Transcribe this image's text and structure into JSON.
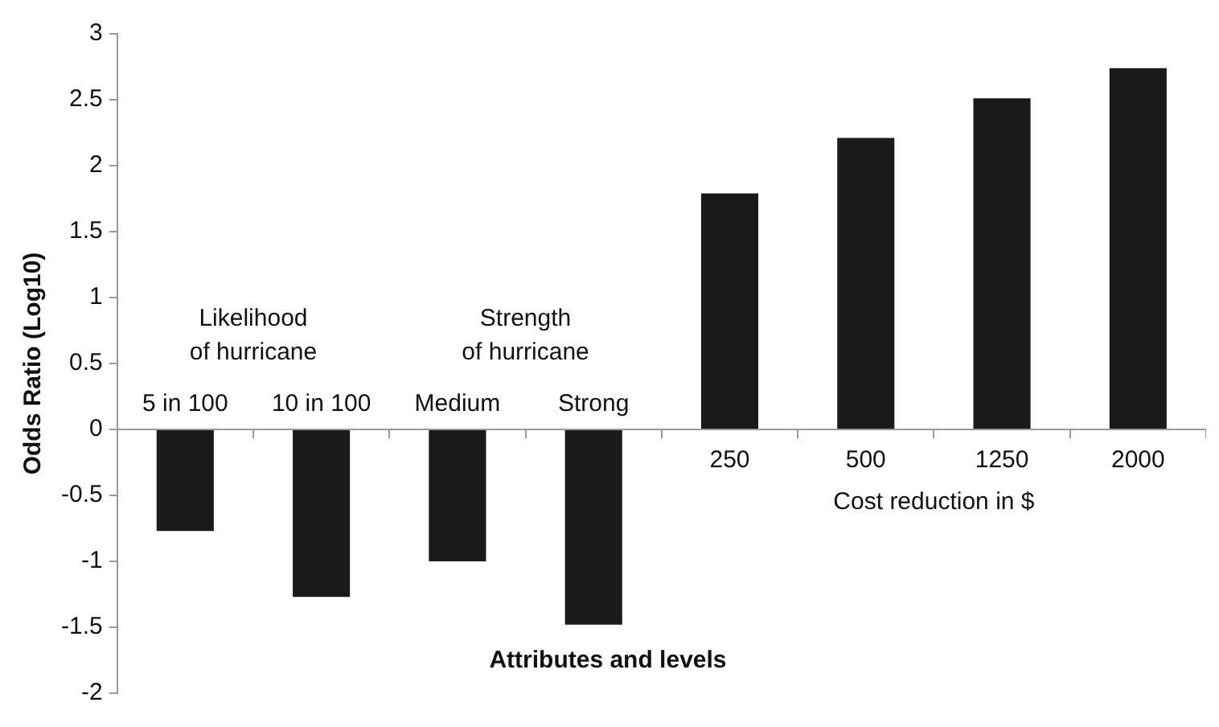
{
  "chart_data": {
    "type": "bar",
    "xlabel": "Attributes and levels",
    "ylabel": "Odds Ratio (Log10)",
    "categories": [
      "5 in 100",
      "10 in 100",
      "Medium",
      "Strong",
      "250",
      "500",
      "1250",
      "2000"
    ],
    "values": [
      -0.77,
      -1.27,
      -1.0,
      -1.48,
      1.79,
      2.21,
      2.51,
      2.74
    ],
    "color": "#1a1a1a",
    "ylim": [
      -2,
      3
    ],
    "yticks": [
      -2,
      -1.5,
      -1,
      -0.5,
      0,
      0.5,
      1,
      1.5,
      2,
      2.5,
      3
    ],
    "annotations": [
      "Likelihood\nof hurricane",
      "Strength\nof hurricane",
      "Cost reduction in $"
    ],
    "grid": false,
    "legend": false
  }
}
